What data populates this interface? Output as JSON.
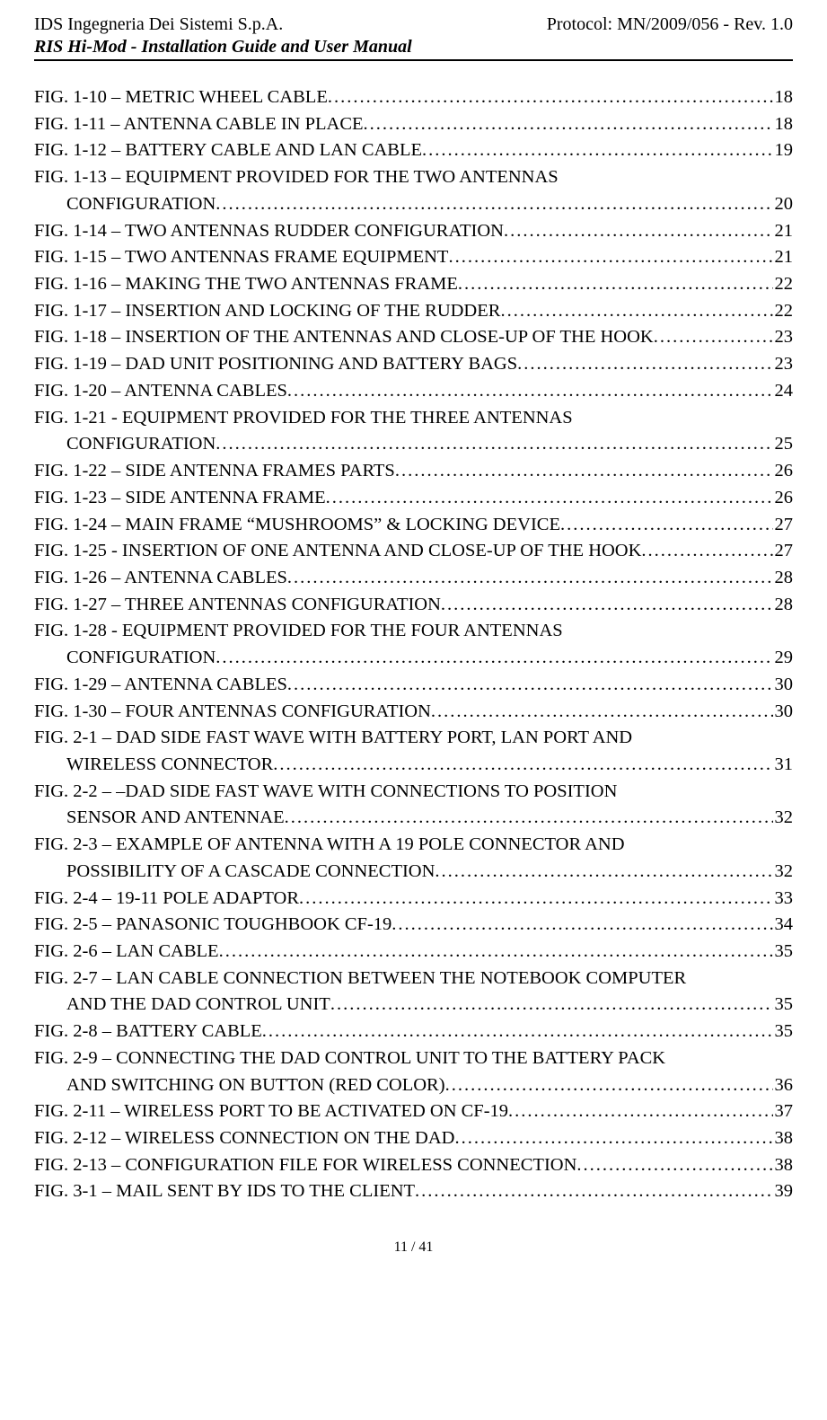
{
  "header": {
    "company": "IDS Ingegneria Dei Sistemi S.p.A.",
    "protocol": "Protocol: MN/2009/056 - Rev. 1.0",
    "subtitle": "RIS Hi-Mod  - Installation Guide and User Manual"
  },
  "footer": {
    "page_current": "11",
    "page_sep": " / ",
    "page_total": "41"
  },
  "toc": [
    {
      "lines": [
        "FIG. 1-10 – METRIC WHEEL CABLE"
      ],
      "page": "18"
    },
    {
      "lines": [
        "FIG. 1-11 – ANTENNA CABLE IN PLACE"
      ],
      "page": "18"
    },
    {
      "lines": [
        "FIG. 1-12 – BATTERY CABLE AND LAN CABLE"
      ],
      "page": "19"
    },
    {
      "lines": [
        "FIG. 1-13 – EQUIPMENT PROVIDED FOR THE TWO ANTENNAS",
        "CONFIGURATION"
      ],
      "page": "20"
    },
    {
      "lines": [
        "FIG. 1-14 – TWO ANTENNAS RUDDER CONFIGURATION"
      ],
      "page": "21"
    },
    {
      "lines": [
        "FIG. 1-15 – TWO ANTENNAS FRAME EQUIPMENT"
      ],
      "page": "21"
    },
    {
      "lines": [
        "FIG. 1-16 – MAKING THE TWO ANTENNAS FRAME"
      ],
      "page": "22"
    },
    {
      "lines": [
        "FIG. 1-17 – INSERTION AND LOCKING OF THE RUDDER"
      ],
      "page": "22"
    },
    {
      "lines": [
        "FIG. 1-18 – INSERTION OF THE ANTENNAS AND CLOSE-UP OF THE HOOK"
      ],
      "page": "23"
    },
    {
      "lines": [
        "FIG. 1-19 – DAD UNIT POSITIONING AND BATTERY BAGS"
      ],
      "page": "23"
    },
    {
      "lines": [
        "FIG. 1-20 – ANTENNA CABLES"
      ],
      "page": "24"
    },
    {
      "lines": [
        "FIG. 1-21 - EQUIPMENT PROVIDED FOR THE THREE ANTENNAS",
        "CONFIGURATION"
      ],
      "page": "25"
    },
    {
      "lines": [
        "FIG. 1-22 – SIDE ANTENNA FRAMES PARTS"
      ],
      "page": "26"
    },
    {
      "lines": [
        "FIG. 1-23 – SIDE ANTENNA FRAME"
      ],
      "page": "26"
    },
    {
      "lines": [
        "FIG. 1-24 – MAIN FRAME “MUSHROOMS” & LOCKING DEVICE"
      ],
      "page": "27"
    },
    {
      "lines": [
        "FIG. 1-25 - INSERTION OF ONE ANTENNA AND CLOSE-UP OF THE HOOK"
      ],
      "page": "27"
    },
    {
      "lines": [
        "FIG. 1-26 – ANTENNA CABLES"
      ],
      "page": "28"
    },
    {
      "lines": [
        "FIG. 1-27 – THREE ANTENNAS CONFIGURATION"
      ],
      "page": "28"
    },
    {
      "lines": [
        "FIG. 1-28 - EQUIPMENT PROVIDED FOR THE FOUR ANTENNAS",
        "CONFIGURATION"
      ],
      "page": "29"
    },
    {
      "lines": [
        "FIG. 1-29 – ANTENNA CABLES"
      ],
      "page": "30"
    },
    {
      "lines": [
        "FIG. 1-30 – FOUR ANTENNAS CONFIGURATION"
      ],
      "page": "30"
    },
    {
      "lines": [
        "FIG. 2-1 – DAD SIDE FAST WAVE WITH BATTERY PORT, LAN PORT AND",
        "WIRELESS CONNECTOR"
      ],
      "page": "31"
    },
    {
      "lines": [
        "FIG. 2-2 – –DAD SIDE FAST WAVE WITH CONNECTIONS TO POSITION",
        "SENSOR AND ANTENNAE"
      ],
      "page": "32"
    },
    {
      "lines": [
        "FIG. 2-3 – EXAMPLE OF ANTENNA WITH A 19 POLE CONNECTOR AND",
        "POSSIBILITY OF A CASCADE CONNECTION"
      ],
      "page": "32"
    },
    {
      "lines": [
        "FIG. 2-4 – 19-11 POLE ADAPTOR"
      ],
      "page": "33"
    },
    {
      "lines": [
        "FIG. 2-5 – PANASONIC TOUGHBOOK CF-19"
      ],
      "page": "34"
    },
    {
      "lines": [
        "FIG. 2-6 – LAN CABLE"
      ],
      "page": "35"
    },
    {
      "lines": [
        "FIG. 2-7 – LAN CABLE CONNECTION BETWEEN THE NOTEBOOK COMPUTER",
        "AND THE DAD CONTROL UNIT"
      ],
      "page": "35"
    },
    {
      "lines": [
        "FIG. 2-8 – BATTERY CABLE"
      ],
      "page": "35"
    },
    {
      "lines": [
        "FIG. 2-9 – CONNECTING THE DAD CONTROL UNIT TO THE BATTERY PACK",
        "AND SWITCHING ON BUTTON (RED COLOR)"
      ],
      "page": "36"
    },
    {
      "lines": [
        "FIG. 2-11 – WIRELESS PORT TO BE ACTIVATED ON CF-19"
      ],
      "page": "37"
    },
    {
      "lines": [
        "FIG. 2-12 – WIRELESS CONNECTION ON THE DAD"
      ],
      "page": "38"
    },
    {
      "lines": [
        "FIG. 2-13 – CONFIGURATION FILE FOR WIRELESS CONNECTION"
      ],
      "page": "38"
    },
    {
      "lines": [
        "FIG. 3-1 – MAIL SENT BY IDS TO THE CLIENT"
      ],
      "page": "39"
    }
  ]
}
